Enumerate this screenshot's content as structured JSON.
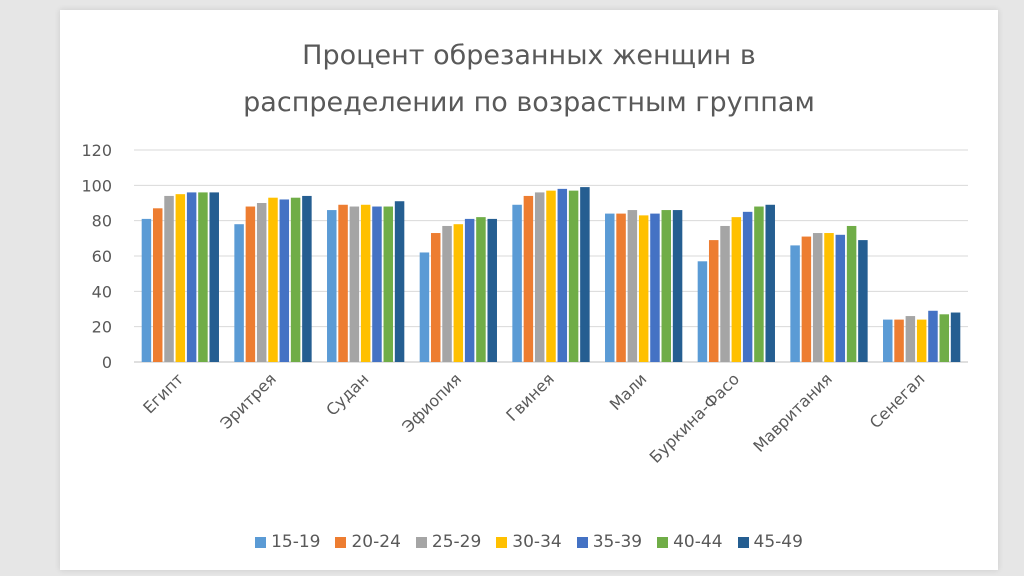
{
  "chart_data": {
    "type": "bar",
    "title_line1": "Процент обрезанных женщин в",
    "title_line2": "распределении по возрастным группам",
    "categories": [
      "Египт",
      "Эритрея",
      "Судан",
      "Эфиопия",
      "Гвинея",
      "Мали",
      "Буркина-Фасо",
      "Мавритания",
      "Сенегал"
    ],
    "series": [
      {
        "name": "15-19",
        "color": "#5b9bd5",
        "values": [
          81,
          78,
          86,
          62,
          89,
          84,
          57,
          66,
          24
        ]
      },
      {
        "name": "20-24",
        "color": "#ed7d31",
        "values": [
          87,
          88,
          89,
          73,
          94,
          84,
          69,
          71,
          24
        ]
      },
      {
        "name": "25-29",
        "color": "#a5a5a5",
        "values": [
          94,
          90,
          88,
          77,
          96,
          86,
          77,
          73,
          26
        ]
      },
      {
        "name": "30-34",
        "color": "#ffc000",
        "values": [
          95,
          93,
          89,
          78,
          97,
          83,
          82,
          73,
          24
        ]
      },
      {
        "name": "35-39",
        "color": "#4472c4",
        "values": [
          96,
          92,
          88,
          81,
          98,
          84,
          85,
          72,
          29
        ]
      },
      {
        "name": "40-44",
        "color": "#70ad47",
        "values": [
          96,
          93,
          88,
          82,
          97,
          86,
          88,
          77,
          27
        ]
      },
      {
        "name": "45-49",
        "color": "#255e91",
        "values": [
          96,
          94,
          91,
          81,
          99,
          86,
          89,
          69,
          28
        ]
      }
    ],
    "ylim": [
      0,
      120
    ],
    "yticks": [
      "0",
      "20",
      "40",
      "60",
      "80",
      "100",
      "120"
    ],
    "grid": true,
    "legend_position": "bottom"
  }
}
